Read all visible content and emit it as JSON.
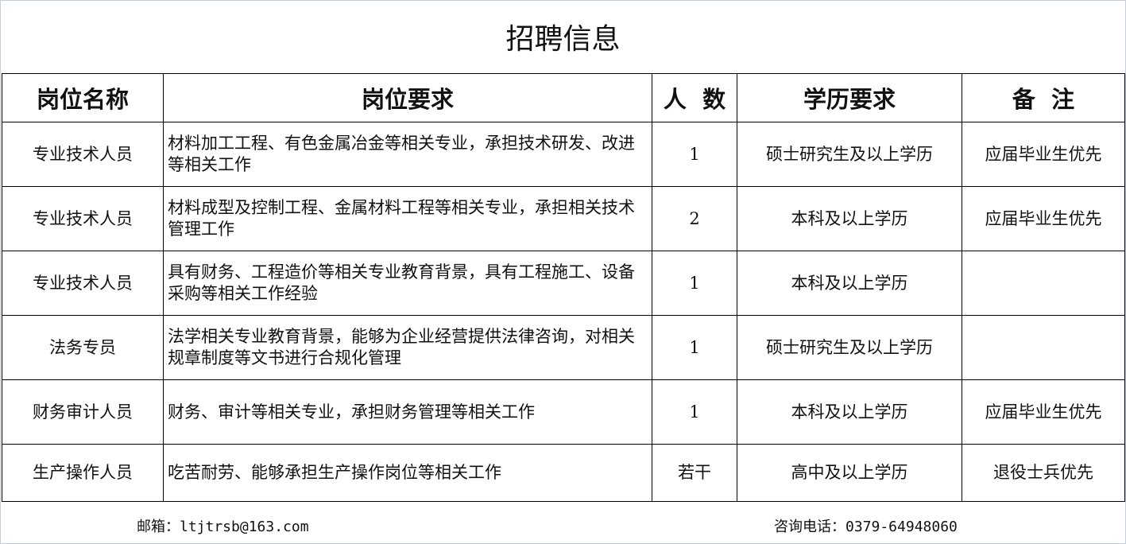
{
  "title": "招聘信息",
  "headers": [
    "岗位名称",
    "岗位要求",
    "人  数",
    "学历要求",
    "备  注"
  ],
  "rows": [
    {
      "name": "专业技术人员",
      "requirement": "材料加工工程、有色金属冶金等相关专业，承担技术研发、改进等相关工作",
      "count": "1",
      "education": "硕士研究生及以上学历",
      "note": "应届毕业生优先"
    },
    {
      "name": "专业技术人员",
      "requirement": "材料成型及控制工程、金属材料工程等相关专业，承担相关技术管理工作",
      "count": "2",
      "education": "本科及以上学历",
      "note": "应届毕业生优先"
    },
    {
      "name": "专业技术人员",
      "requirement": "具有财务、工程造价等相关专业教育背景，具有工程施工、设备采购等相关工作经验",
      "count": "1",
      "education": "本科及以上学历",
      "note": ""
    },
    {
      "name": "法务专员",
      "requirement": "法学相关专业教育背景，能够为企业经营提供法律咨询，对相关规章制度等文书进行合规化管理",
      "count": "1",
      "education": "硕士研究生及以上学历",
      "note": ""
    },
    {
      "name": "财务审计人员",
      "requirement": "财务、审计等相关专业，承担财务管理等相关工作",
      "count": "1",
      "education": "本科及以上学历",
      "note": "应届毕业生优先"
    },
    {
      "name": "生产操作人员",
      "requirement": "吃苦耐劳、能够承担生产操作岗位等相关工作",
      "count": "若干",
      "education": "高中及以上学历",
      "note": "退役士兵优先"
    }
  ],
  "footer": {
    "email": "邮箱：ltjtrsb@163.com",
    "phone": "咨询电话：0379-64948060"
  }
}
